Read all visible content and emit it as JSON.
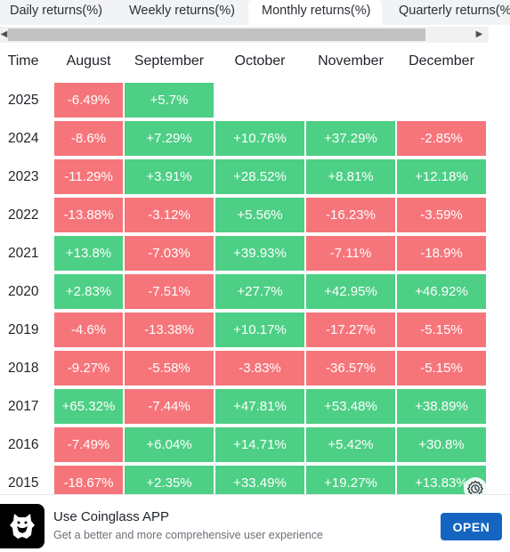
{
  "tabs": [
    {
      "label": "Daily returns(%)",
      "active": false
    },
    {
      "label": "Weekly returns(%)",
      "active": false
    },
    {
      "label": "Monthly returns(%)",
      "active": true
    },
    {
      "label": "Quarterly returns(%)",
      "active": false
    }
  ],
  "table": {
    "time_header": "Time",
    "columns": [
      "August",
      "September",
      "October",
      "November",
      "December"
    ],
    "rows": [
      {
        "year": "2025",
        "values": [
          "-6.49%",
          "+5.7%",
          "",
          "",
          ""
        ]
      },
      {
        "year": "2024",
        "values": [
          "-8.6%",
          "+7.29%",
          "+10.76%",
          "+37.29%",
          "-2.85%"
        ]
      },
      {
        "year": "2023",
        "values": [
          "-11.29%",
          "+3.91%",
          "+28.52%",
          "+8.81%",
          "+12.18%"
        ]
      },
      {
        "year": "2022",
        "values": [
          "-13.88%",
          "-3.12%",
          "+5.56%",
          "-16.23%",
          "-3.59%"
        ]
      },
      {
        "year": "2021",
        "values": [
          "+13.8%",
          "-7.03%",
          "+39.93%",
          "-7.11%",
          "-18.9%"
        ]
      },
      {
        "year": "2020",
        "values": [
          "+2.83%",
          "-7.51%",
          "+27.7%",
          "+42.95%",
          "+46.92%"
        ]
      },
      {
        "year": "2019",
        "values": [
          "-4.6%",
          "-13.38%",
          "+10.17%",
          "-17.27%",
          "-5.15%"
        ]
      },
      {
        "year": "2018",
        "values": [
          "-9.27%",
          "-5.58%",
          "-3.83%",
          "-36.57%",
          "-5.15%"
        ]
      },
      {
        "year": "2017",
        "values": [
          "+65.32%",
          "-7.44%",
          "+47.81%",
          "+53.48%",
          "+38.89%"
        ]
      },
      {
        "year": "2016",
        "values": [
          "-7.49%",
          "+6.04%",
          "+14.71%",
          "+5.42%",
          "+30.8%"
        ]
      },
      {
        "year": "2015",
        "values": [
          "-18.67%",
          "+2.35%",
          "+33.49%",
          "+19.27%",
          "+13.83%"
        ]
      }
    ]
  },
  "colors": {
    "negative": "#f6757a",
    "positive": "#4dcf85",
    "open_button": "#1565c0"
  },
  "icons": {
    "floating": "clock-settings-icon",
    "logo": "coinglass-logo-icon"
  },
  "banner": {
    "title": "Use Coinglass APP",
    "subtitle": "Get a better and more comprehensive user experience",
    "button": "OPEN"
  }
}
